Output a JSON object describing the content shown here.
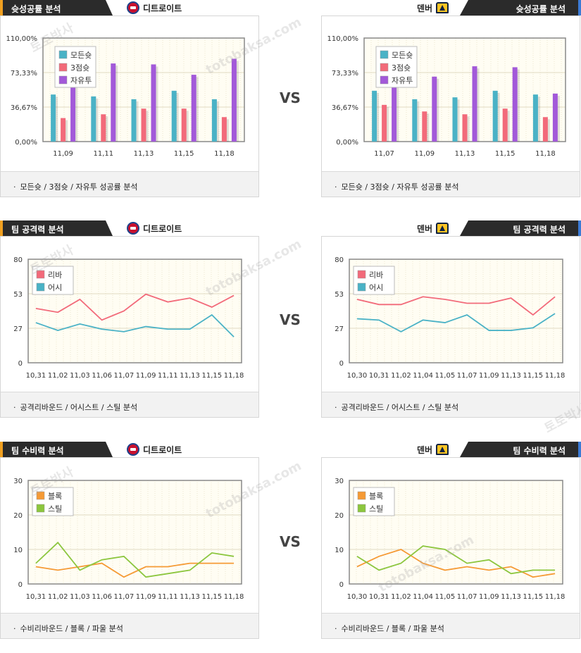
{
  "colors": {
    "blue": "#4ab2c6",
    "red": "#f26a7a",
    "purple": "#a259d9",
    "orange": "#f59a35",
    "green": "#8cc63e",
    "plot_bg": "#fffdf3"
  },
  "vs_label": "VS",
  "sections": [
    {
      "title": "슛성공률 분석",
      "footer": "모든슛 / 3점슛 / 자유투 성공률 분석",
      "left": {
        "team": "디트로이트",
        "chart": {
          "type": "bar",
          "categories": [
            "11,09",
            "11,11",
            "11,13",
            "11,15",
            "11,18"
          ],
          "yticks": [
            "0,00%",
            "36,67%",
            "73,33%",
            "110,00%"
          ],
          "ylim": [
            0,
            110
          ],
          "series": [
            {
              "name": "모든슛",
              "color": "#4ab2c6",
              "values": [
                50,
                48,
                45,
                54,
                45
              ]
            },
            {
              "name": "3점슛",
              "color": "#f26a7a",
              "values": [
                25,
                29,
                35,
                35,
                26
              ]
            },
            {
              "name": "자유투",
              "color": "#a259d9",
              "values": [
                66,
                83,
                82,
                71,
                88
              ]
            }
          ]
        }
      },
      "right": {
        "team": "덴버",
        "chart": {
          "type": "bar",
          "categories": [
            "11,07",
            "11,09",
            "11,13",
            "11,15",
            "11,18"
          ],
          "yticks": [
            "0,00%",
            "36,67%",
            "73,33%",
            "110,00%"
          ],
          "ylim": [
            0,
            110
          ],
          "series": [
            {
              "name": "모든슛",
              "color": "#4ab2c6",
              "values": [
                54,
                45,
                47,
                54,
                50
              ]
            },
            {
              "name": "3점슛",
              "color": "#f26a7a",
              "values": [
                39,
                32,
                29,
                35,
                26
              ]
            },
            {
              "name": "자유투",
              "color": "#a259d9",
              "values": [
                62,
                69,
                80,
                79,
                51
              ]
            }
          ]
        }
      }
    },
    {
      "title": "팀 공격력 분석",
      "footer": "공격리바운드 / 어시스트 / 스틸 분석",
      "left": {
        "team": "디트로이트",
        "chart": {
          "type": "line",
          "categories": [
            "10,31",
            "11,02",
            "11,03",
            "11,06",
            "11,07",
            "11,09",
            "11,11",
            "11,13",
            "11,15",
            "11,18"
          ],
          "yticks": [
            "0",
            "27",
            "53",
            "80"
          ],
          "ylim": [
            0,
            80
          ],
          "series": [
            {
              "name": "리바",
              "color": "#f26a7a",
              "values": [
                42,
                39,
                49,
                33,
                40,
                53,
                47,
                50,
                43,
                52
              ]
            },
            {
              "name": "어시",
              "color": "#4ab2c6",
              "values": [
                31,
                25,
                30,
                26,
                24,
                28,
                26,
                26,
                37,
                20
              ]
            }
          ]
        }
      },
      "right": {
        "team": "덴버",
        "chart": {
          "type": "line",
          "categories": [
            "10,30",
            "10,31",
            "11,02",
            "11,04",
            "11,05",
            "11,07",
            "11,09",
            "11,13",
            "11,15",
            "11,18"
          ],
          "yticks": [
            "0",
            "27",
            "53",
            "80"
          ],
          "ylim": [
            0,
            80
          ],
          "series": [
            {
              "name": "리바",
              "color": "#f26a7a",
              "values": [
                49,
                45,
                45,
                51,
                49,
                46,
                46,
                50,
                37,
                51
              ]
            },
            {
              "name": "어시",
              "color": "#4ab2c6",
              "values": [
                34,
                33,
                24,
                33,
                31,
                37,
                25,
                25,
                27,
                38
              ]
            }
          ]
        }
      }
    },
    {
      "title": "팀 수비력 분석",
      "footer": "수비리바운드 / 블록 / 파울 분석",
      "left": {
        "team": "디트로이트",
        "chart": {
          "type": "line",
          "categories": [
            "10,31",
            "11,02",
            "11,03",
            "11,06",
            "11,07",
            "11,09",
            "11,11",
            "11,13",
            "11,15",
            "11,18"
          ],
          "yticks": [
            "0",
            "10",
            "20",
            "30"
          ],
          "ylim": [
            0,
            30
          ],
          "series": [
            {
              "name": "블록",
              "color": "#f59a35",
              "values": [
                5,
                4,
                5,
                6,
                2,
                5,
                5,
                6,
                6,
                6
              ]
            },
            {
              "name": "스틸",
              "color": "#8cc63e",
              "values": [
                6,
                12,
                4,
                7,
                8,
                2,
                3,
                4,
                9,
                8
              ]
            }
          ]
        }
      },
      "right": {
        "team": "덴버",
        "chart": {
          "type": "line",
          "categories": [
            "10,30",
            "10,31",
            "11,02",
            "11,04",
            "11,05",
            "11,07",
            "11,09",
            "11,13",
            "11,15",
            "11,18"
          ],
          "yticks": [
            "0",
            "10",
            "20",
            "30"
          ],
          "ylim": [
            0,
            30
          ],
          "series": [
            {
              "name": "블록",
              "color": "#f59a35",
              "values": [
                5,
                8,
                10,
                6,
                4,
                5,
                4,
                5,
                2,
                3
              ]
            },
            {
              "name": "스틸",
              "color": "#8cc63e",
              "values": [
                8,
                4,
                6,
                11,
                10,
                6,
                7,
                3,
                4,
                4
              ]
            }
          ]
        }
      }
    }
  ],
  "chart_data": [
    {
      "type": "bar",
      "categories": [
        "11,09",
        "11,11",
        "11,13",
        "11,15",
        "11,18"
      ],
      "ylim": [
        0,
        110
      ],
      "series": [
        {
          "name": "모든슛",
          "values": [
            50,
            48,
            45,
            54,
            45
          ]
        },
        {
          "name": "3점슛",
          "values": [
            25,
            29,
            35,
            35,
            26
          ]
        },
        {
          "name": "자유투",
          "values": [
            66,
            83,
            82,
            71,
            88
          ]
        }
      ]
    },
    {
      "type": "bar",
      "categories": [
        "11,07",
        "11,09",
        "11,13",
        "11,15",
        "11,18"
      ],
      "ylim": [
        0,
        110
      ],
      "series": [
        {
          "name": "모든슛",
          "values": [
            54,
            45,
            47,
            54,
            50
          ]
        },
        {
          "name": "3점슛",
          "values": [
            39,
            32,
            29,
            35,
            26
          ]
        },
        {
          "name": "자유투",
          "values": [
            62,
            69,
            80,
            79,
            51
          ]
        }
      ]
    },
    {
      "type": "line",
      "categories": [
        "10,31",
        "11,02",
        "11,03",
        "11,06",
        "11,07",
        "11,09",
        "11,11",
        "11,13",
        "11,15",
        "11,18"
      ],
      "ylim": [
        0,
        80
      ],
      "series": [
        {
          "name": "리바",
          "values": [
            42,
            39,
            49,
            33,
            40,
            53,
            47,
            50,
            43,
            52
          ]
        },
        {
          "name": "어시",
          "values": [
            31,
            25,
            30,
            26,
            24,
            28,
            26,
            26,
            37,
            20
          ]
        }
      ]
    },
    {
      "type": "line",
      "categories": [
        "10,30",
        "10,31",
        "11,02",
        "11,04",
        "11,05",
        "11,07",
        "11,09",
        "11,13",
        "11,15",
        "11,18"
      ],
      "ylim": [
        0,
        80
      ],
      "series": [
        {
          "name": "리바",
          "values": [
            49,
            45,
            45,
            51,
            49,
            46,
            46,
            50,
            37,
            51
          ]
        },
        {
          "name": "어시",
          "values": [
            34,
            33,
            24,
            33,
            31,
            37,
            25,
            25,
            27,
            38
          ]
        }
      ]
    },
    {
      "type": "line",
      "categories": [
        "10,31",
        "11,02",
        "11,03",
        "11,06",
        "11,07",
        "11,09",
        "11,11",
        "11,13",
        "11,15",
        "11,18"
      ],
      "ylim": [
        0,
        30
      ],
      "series": [
        {
          "name": "블록",
          "values": [
            5,
            4,
            5,
            6,
            2,
            5,
            5,
            6,
            6,
            6
          ]
        },
        {
          "name": "스틸",
          "values": [
            6,
            12,
            4,
            7,
            8,
            2,
            3,
            4,
            9,
            8
          ]
        }
      ]
    },
    {
      "type": "line",
      "categories": [
        "10,30",
        "10,31",
        "11,02",
        "11,04",
        "11,05",
        "11,07",
        "11,09",
        "11,13",
        "11,15",
        "11,18"
      ],
      "ylim": [
        0,
        30
      ],
      "series": [
        {
          "name": "블록",
          "values": [
            5,
            8,
            10,
            6,
            4,
            5,
            4,
            5,
            2,
            3
          ]
        },
        {
          "name": "스틸",
          "values": [
            8,
            4,
            6,
            11,
            10,
            6,
            7,
            3,
            4,
            4
          ]
        }
      ]
    }
  ],
  "watermark": {
    "line1": "토토박사",
    "line2": "totobaksa.com"
  }
}
